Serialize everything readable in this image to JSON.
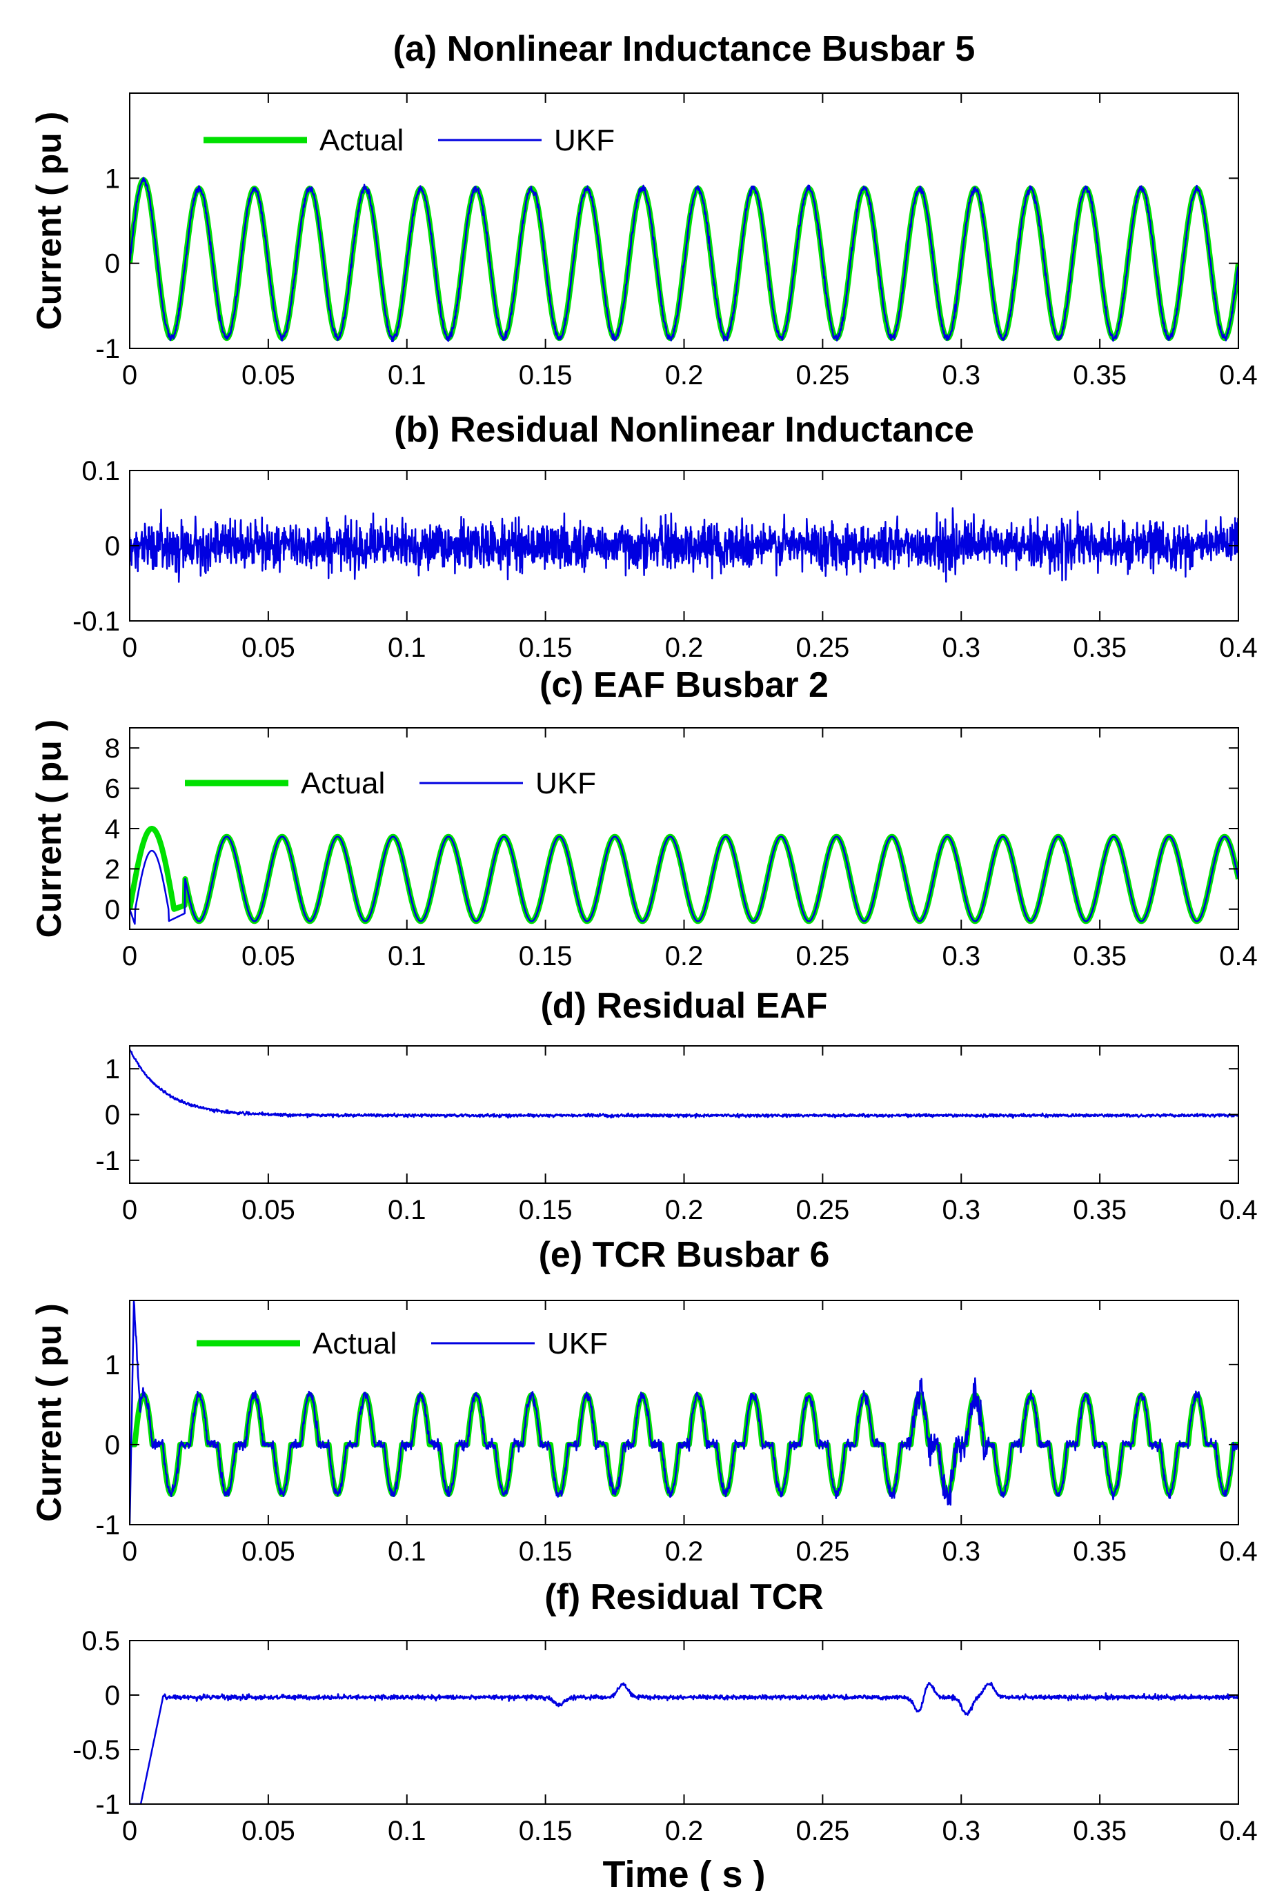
{
  "chart_data": [
    {
      "id": "a",
      "type": "line",
      "title": "(a) Nonlinear Inductance Busbar 5",
      "ylabel": "Current ( pu )",
      "xlabel": "",
      "xlim": [
        0,
        0.4
      ],
      "ylim": [
        -1,
        2
      ],
      "xticks": [
        0,
        0.05,
        0.1,
        0.15,
        0.2,
        0.25,
        0.3,
        0.35,
        0.4
      ],
      "xtick_labels": [
        "0",
        "0.05",
        "0.1",
        "0.15",
        "0.2",
        "0.25",
        "0.3",
        "0.35",
        "0.4"
      ],
      "yticks": [
        -1,
        0,
        1
      ],
      "ytick_labels": [
        "-1",
        "0",
        "1"
      ],
      "legend": [
        "Actual",
        "UKF"
      ],
      "series": [
        {
          "name": "Actual",
          "color": "#00e000",
          "model": {
            "kind": "sine",
            "freq": 50,
            "amp": 0.88,
            "first_amp": 0.98
          }
        },
        {
          "name": "UKF",
          "color": "#0000e0",
          "model": {
            "kind": "sine",
            "freq": 50,
            "amp": 0.88,
            "first_amp": 0.98,
            "noise": 0.02
          }
        }
      ]
    },
    {
      "id": "b",
      "type": "line",
      "title": "(b) Residual Nonlinear Inductance",
      "ylabel": "",
      "xlabel": "",
      "xlim": [
        0,
        0.4
      ],
      "ylim": [
        -0.1,
        0.1
      ],
      "xticks": [
        0,
        0.05,
        0.1,
        0.15,
        0.2,
        0.25,
        0.3,
        0.35,
        0.4
      ],
      "xtick_labels": [
        "0",
        "0.05",
        "0.1",
        "0.15",
        "0.2",
        "0.25",
        "0.3",
        "0.35",
        "0.4"
      ],
      "yticks": [
        -0.1,
        0,
        0.1
      ],
      "ytick_labels": [
        "-0.1",
        "0",
        "0.1"
      ],
      "legend": [],
      "series": [
        {
          "name": "Residual",
          "color": "#0000e0",
          "model": {
            "kind": "noise",
            "sigma": 0.015,
            "max": 0.05
          }
        }
      ]
    },
    {
      "id": "c",
      "type": "line",
      "title": "(c) EAF Busbar 2",
      "ylabel": "Current ( pu )",
      "xlabel": "",
      "xlim": [
        0,
        0.4
      ],
      "ylim": [
        -1,
        9
      ],
      "xticks": [
        0,
        0.05,
        0.1,
        0.15,
        0.2,
        0.25,
        0.3,
        0.35,
        0.4
      ],
      "xtick_labels": [
        "0",
        "0.05",
        "0.1",
        "0.15",
        "0.2",
        "0.25",
        "0.3",
        "0.35",
        "0.4"
      ],
      "yticks": [
        0,
        2,
        4,
        6,
        8
      ],
      "ytick_labels": [
        "0",
        "2",
        "4",
        "6",
        "8"
      ],
      "legend": [
        "Actual",
        "UKF"
      ],
      "series": [
        {
          "name": "Actual",
          "color": "#00e000",
          "model": {
            "kind": "offset-sine",
            "freq": 50,
            "amp": 2.1,
            "offset": 1.5,
            "first_peak": 4.0
          }
        },
        {
          "name": "UKF",
          "color": "#0000e0",
          "model": {
            "kind": "offset-sine",
            "freq": 50,
            "amp": 2.1,
            "offset": 1.5,
            "first_peak": 2.9,
            "first_trough": -0.8
          }
        }
      ]
    },
    {
      "id": "d",
      "type": "line",
      "title": "(d) Residual EAF",
      "ylabel": "",
      "xlabel": "",
      "xlim": [
        0,
        0.4
      ],
      "ylim": [
        -1.5,
        1.5
      ],
      "xticks": [
        0,
        0.05,
        0.1,
        0.15,
        0.2,
        0.25,
        0.3,
        0.35,
        0.4
      ],
      "xtick_labels": [
        "0",
        "0.05",
        "0.1",
        "0.15",
        "0.2",
        "0.25",
        "0.3",
        "0.35",
        "0.4"
      ],
      "yticks": [
        -1,
        0,
        1
      ],
      "ytick_labels": [
        "-1",
        "0",
        "1"
      ],
      "legend": [],
      "series": [
        {
          "name": "Residual",
          "color": "#0000e0",
          "model": {
            "kind": "decay",
            "start": 1.45,
            "tau": 0.012,
            "noise": 0.025
          }
        }
      ]
    },
    {
      "id": "e",
      "type": "line",
      "title": "(e) TCR Busbar 6",
      "ylabel": "Current ( pu )",
      "xlabel": "",
      "xlim": [
        0,
        0.4
      ],
      "ylim": [
        -1,
        1.8
      ],
      "xticks": [
        0,
        0.05,
        0.1,
        0.15,
        0.2,
        0.25,
        0.3,
        0.35,
        0.4
      ],
      "xtick_labels": [
        "0",
        "0.05",
        "0.1",
        "0.15",
        "0.2",
        "0.25",
        "0.3",
        "0.35",
        "0.4"
      ],
      "yticks": [
        -1,
        0,
        1
      ],
      "ytick_labels": [
        "-1",
        "0",
        "1"
      ],
      "legend": [
        "Actual",
        "UKF"
      ],
      "series": [
        {
          "name": "Actual",
          "color": "#00e000",
          "model": {
            "kind": "tcr",
            "freq": 50,
            "amp": 0.62
          }
        },
        {
          "name": "UKF",
          "color": "#0000e0",
          "model": {
            "kind": "tcr",
            "freq": 50,
            "amp": 0.62,
            "spike_max": 1.8,
            "spike_min": -1,
            "noise": 0.03
          }
        }
      ]
    },
    {
      "id": "f",
      "type": "line",
      "title": "(f) Residual TCR",
      "ylabel": "",
      "xlabel": "Time ( s )",
      "xlim": [
        0,
        0.4
      ],
      "ylim": [
        -1,
        0.5
      ],
      "xticks": [
        0,
        0.05,
        0.1,
        0.15,
        0.2,
        0.25,
        0.3,
        0.35,
        0.4
      ],
      "xtick_labels": [
        "0",
        "0.05",
        "0.1",
        "0.15",
        "0.2",
        "0.25",
        "0.3",
        "0.35",
        "0.4"
      ],
      "yticks": [
        -1,
        -0.5,
        0,
        0.5
      ],
      "ytick_labels": [
        "-1",
        "-0.5",
        "0",
        "0.5"
      ],
      "legend": [],
      "series": [
        {
          "name": "Residual",
          "color": "#0000e0",
          "model": {
            "kind": "tcr-residual",
            "noise": 0.01,
            "bumps": [
              [
                0.155,
                -0.07
              ],
              [
                0.178,
                0.12
              ],
              [
                0.285,
                -0.15
              ],
              [
                0.288,
                0.15
              ],
              [
                0.302,
                -0.15
              ],
              [
                0.31,
                0.13
              ]
            ]
          }
        }
      ]
    }
  ]
}
